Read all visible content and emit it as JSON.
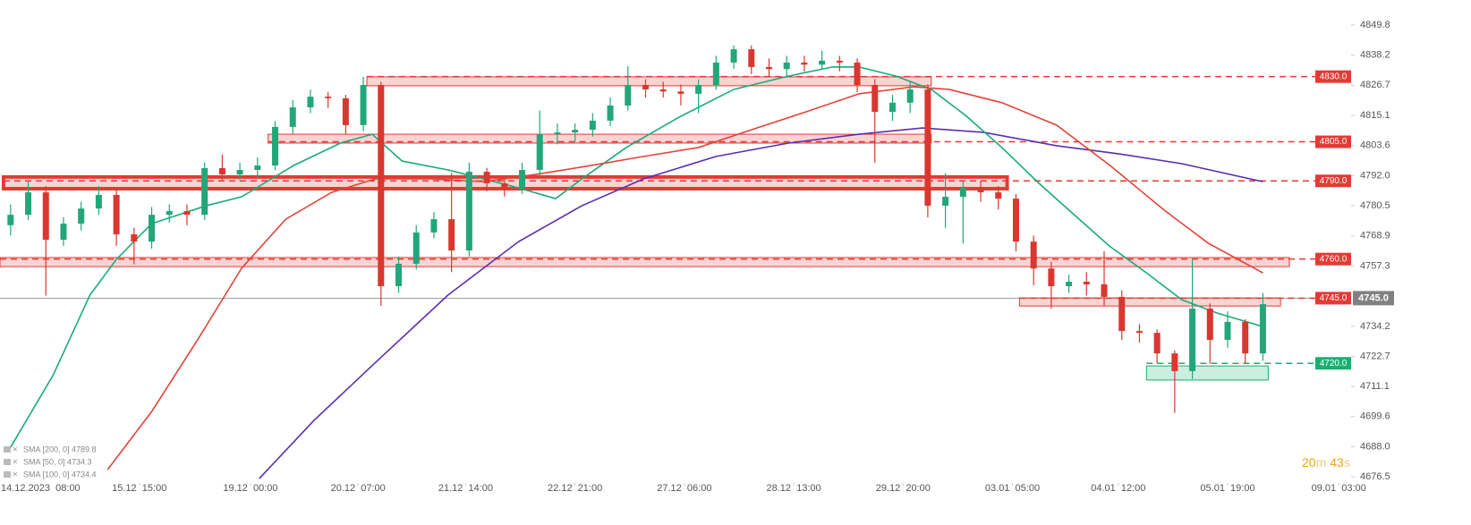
{
  "chart_data": {
    "type": "candlestick",
    "up_color": "#22a67a",
    "down_color": "#d9372f",
    "xlim": [
      -0.6,
      76.0
    ],
    "ylim": [
      4674.1,
      4859.4
    ],
    "xticks": [
      {
        "value": 1.7,
        "label": "14.12.2023  08:00"
      },
      {
        "value": 7.3,
        "label": "15.12  15:00"
      },
      {
        "value": 13.6,
        "label": "19.12  00:00"
      },
      {
        "value": 19.7,
        "label": "20.12  07:00"
      },
      {
        "value": 25.8,
        "label": "21.12  14:00"
      },
      {
        "value": 32.0,
        "label": "22.12  21:00"
      },
      {
        "value": 38.2,
        "label": "27.12  06:00"
      },
      {
        "value": 44.4,
        "label": "28.12  13:00"
      },
      {
        "value": 50.6,
        "label": "29.12  20:00"
      },
      {
        "value": 56.8,
        "label": "03.01  05:00"
      },
      {
        "value": 62.8,
        "label": "04.01  12:00"
      },
      {
        "value": 69.0,
        "label": "05.01  19:00"
      },
      {
        "value": 75.3,
        "label": "09.01  03:00"
      }
    ],
    "yticks": [
      4849.8,
      4838.2,
      4826.7,
      4815.1,
      4803.6,
      {
        "value": 4792.0,
        "label": "4792.0"
      },
      4780.5,
      4768.9,
      4757.3,
      4734.2,
      4722.7,
      4711.1,
      4699.6,
      {
        "value": 4688.0,
        "label": "4688.0"
      },
      4676.5
    ],
    "open": [
      4773.0,
      4777.0,
      4785.6,
      4767.4,
      4773.6,
      4779.4,
      4784.6,
      4769.5,
      4766.7,
      4777.0,
      4778.4,
      4777.0,
      4794.9,
      4792.5,
      4794.2,
      4795.9,
      4810.7,
      4818.2,
      4822.3,
      4821.7,
      4811.4,
      4826.8,
      4749.6,
      4758.2,
      4770.2,
      4775.3,
      4763.3,
      4793.5,
      4789.1,
      4787.3,
      4794.2,
      4807.9,
      4808.6,
      4809.6,
      4813.1,
      4818.9,
      4826.8,
      4825.1,
      4824.3,
      4823.4,
      4826.8,
      4835.4,
      4840.5,
      4833.7,
      4832.9,
      4835.4,
      4834.6,
      4836.1,
      4835.4,
      4826.8,
      4816.5,
      4820.0,
      4825.1,
      4780.5,
      4783.9,
      4787.3,
      4785.6,
      4783.2,
      4766.7,
      4756.4,
      4749.6,
      4751.3,
      4750.3,
      4745.5,
      4732.4,
      4731.7,
      4723.8,
      4717.0,
      4741.0,
      4729.0,
      4735.9,
      4723.8
    ],
    "high": [
      4781,
      4790,
      4788,
      4776,
      4782,
      4788,
      4787,
      4772,
      4780,
      4781,
      4781,
      4797,
      4800,
      4797,
      4799,
      4813,
      4821,
      4825,
      4824,
      4823,
      4830,
      4828,
      4761,
      4773,
      4778,
      4793,
      4797,
      4795,
      4791,
      4797,
      4817,
      4812,
      4812,
      4816,
      4822,
      4834,
      4829,
      4828,
      4827,
      4829,
      4838,
      4842,
      4842,
      4837,
      4838,
      4838,
      4840,
      4838,
      4837,
      4829,
      4823,
      4828,
      4827,
      4793,
      4790,
      4790,
      4788,
      4785,
      4769,
      4759,
      4754,
      4755,
      4763,
      4748,
      4735,
      4733,
      4725,
      4760,
      4743,
      4740,
      4737,
      4747
    ],
    "low": [
      4769,
      4775,
      4746,
      4765,
      4771,
      4777,
      4765,
      4758,
      4764,
      4774,
      4773,
      4775,
      4790,
      4790,
      4791,
      4794,
      4808,
      4816,
      4818,
      4808,
      4809,
      4742,
      4747,
      4756,
      4768,
      4755,
      4761,
      4786,
      4784,
      4785,
      4792,
      4804,
      4805,
      4807,
      4811,
      4817,
      4822,
      4822,
      4819,
      4816,
      4825,
      4833,
      4831,
      4830,
      4830,
      4832,
      4833,
      4832,
      4824,
      4797,
      4813,
      4816,
      4776,
      4772,
      4766,
      4782,
      4779,
      4763,
      4750,
      4741,
      4747,
      4746,
      4742,
      4729,
      4728,
      4720,
      4701,
      4714,
      4720,
      4726,
      4720,
      4721
    ],
    "close": [
      4777.0,
      4785.6,
      4767.4,
      4773.6,
      4779.4,
      4784.6,
      4769.5,
      4766.7,
      4777.0,
      4778.4,
      4777.0,
      4794.9,
      4792.5,
      4794.2,
      4795.9,
      4810.7,
      4818.2,
      4822.3,
      4821.7,
      4811.4,
      4826.8,
      4749.6,
      4758.2,
      4770.2,
      4775.3,
      4763.3,
      4793.5,
      4789.1,
      4787.3,
      4794.2,
      4807.9,
      4808.6,
      4809.6,
      4813.1,
      4818.9,
      4826.8,
      4825.1,
      4824.3,
      4823.4,
      4826.8,
      4835.4,
      4840.5,
      4833.7,
      4832.9,
      4835.4,
      4834.6,
      4836.1,
      4835.4,
      4826.8,
      4816.5,
      4820.0,
      4825.1,
      4780.5,
      4783.9,
      4787.3,
      4785.6,
      4783.2,
      4766.7,
      4756.4,
      4749.6,
      4751.3,
      4750.3,
      4745.5,
      4732.4,
      4731.7,
      4723.8,
      4717.0,
      4741.0,
      4729.0,
      4735.9,
      4723.8,
      4742.7
    ],
    "sma": [
      {
        "name": "SMA [200, 0] 4789.8",
        "color": "#5b2eb0",
        "x": [
          14.1,
          17.2,
          20.7,
          24.8,
          28.8,
          32.4,
          35.9,
          40.0,
          44.1,
          48.1,
          51.7,
          55.2,
          59.3,
          62.8,
          66.4,
          71.0
        ],
        "values": [
          4675.8,
          4698.1,
          4720.4,
          4746.2,
          4766.7,
          4780.5,
          4790.8,
          4799.4,
          4804.5,
          4807.9,
          4810.3,
          4808.6,
          4803.5,
          4800.4,
          4796.6,
          4789.7
        ]
      },
      {
        "name": "SMA [50, 0] 4734.3",
        "color": "#1aaa7a",
        "x": [
          0,
          2.4,
          4.5,
          6.0,
          8.0,
          11.1,
          13.1,
          16.1,
          18.7,
          20.5,
          22.2,
          24.8,
          26.8,
          28.8,
          30.9,
          32.4,
          34.9,
          38.0,
          41.0,
          44.1,
          46.6,
          48.1,
          50.2,
          52.2,
          54.2,
          56.2,
          58.3,
          60.3,
          62.3,
          64.4,
          66.4,
          68.4,
          71.0
        ],
        "values": [
          4687.8,
          4715.3,
          4746.2,
          4759.9,
          4773.6,
          4780.5,
          4783.9,
          4796.1,
          4804.5,
          4807.9,
          4797.6,
          4794.2,
          4790.8,
          4787.3,
          4783.2,
          4790.8,
          4802.8,
          4814.8,
          4825.1,
          4830.2,
          4833.7,
          4833.7,
          4830.2,
          4825.1,
          4814.8,
          4802.8,
          4789.1,
          4777.0,
          4765.0,
          4754.7,
          4744.4,
          4739.3,
          4734.1
        ]
      },
      {
        "name": "SMA [100, 0] 4734.4",
        "color": "#e0443b",
        "x": [
          5.5,
          8.0,
          10.6,
          13.1,
          15.6,
          18.2,
          20.7,
          23.8,
          26.8,
          29.8,
          32.9,
          35.9,
          39.0,
          42.0,
          45.1,
          48.1,
          51.2,
          53.2,
          56.2,
          59.3,
          62.3,
          65.4,
          67.9,
          71.0
        ],
        "values": [
          4679.2,
          4701.5,
          4729.0,
          4756.5,
          4775.3,
          4785.6,
          4790.8,
          4790.8,
          4789.7,
          4792.5,
          4795.9,
          4799.4,
          4802.8,
          4809.6,
          4816.5,
          4823.4,
          4826.1,
          4825.1,
          4820.0,
          4811.4,
          4796.1,
          4778.8,
          4766.1,
          4754.7
        ]
      }
    ],
    "levels": [
      {
        "value": 4830.0,
        "label": "4830.0",
        "color": "#e53935",
        "zone_start": 20.2,
        "zone_end": 52.2,
        "zone_low": 4826.5,
        "zone_high": 4829.9,
        "emphasized": false
      },
      {
        "value": 4805.0,
        "label": "4805.0",
        "color": "#e53935",
        "zone_start": 14.6,
        "zone_end": 52.2,
        "zone_low": 4804.5,
        "zone_high": 4807.9,
        "emphasized": false
      },
      {
        "value": 4790.0,
        "label": "4790.0",
        "color": "#e53935",
        "zone_start": -0.4,
        "zone_end": 56.5,
        "zone_low": 4787.0,
        "zone_high": 4791.5,
        "emphasized": true
      },
      {
        "value": 4760.0,
        "label": "4760.0",
        "color": "#e53935",
        "zone_start": -0.6,
        "zone_end": 72.5,
        "zone_low": 4757.1,
        "zone_high": 4760.6,
        "emphasized": false
      },
      {
        "value": 4745.0,
        "label": "4745.0",
        "color": "#e53935",
        "zone_start": 57.2,
        "zone_end": 72.0,
        "zone_low": 4742.0,
        "zone_high": 4745.1,
        "emphasized": false
      },
      {
        "value": 4720.0,
        "label": "4720.0",
        "color": "#1aaf72",
        "zone_start": 64.4,
        "zone_end": 71.3,
        "zone_low": 4713.6,
        "zone_high": 4719.0,
        "emphasized": false
      }
    ],
    "current_price": {
      "value": 4745.0,
      "label": "4745.0",
      "color": "#808080"
    },
    "timer": [
      "20",
      "m",
      "43",
      "s"
    ]
  }
}
